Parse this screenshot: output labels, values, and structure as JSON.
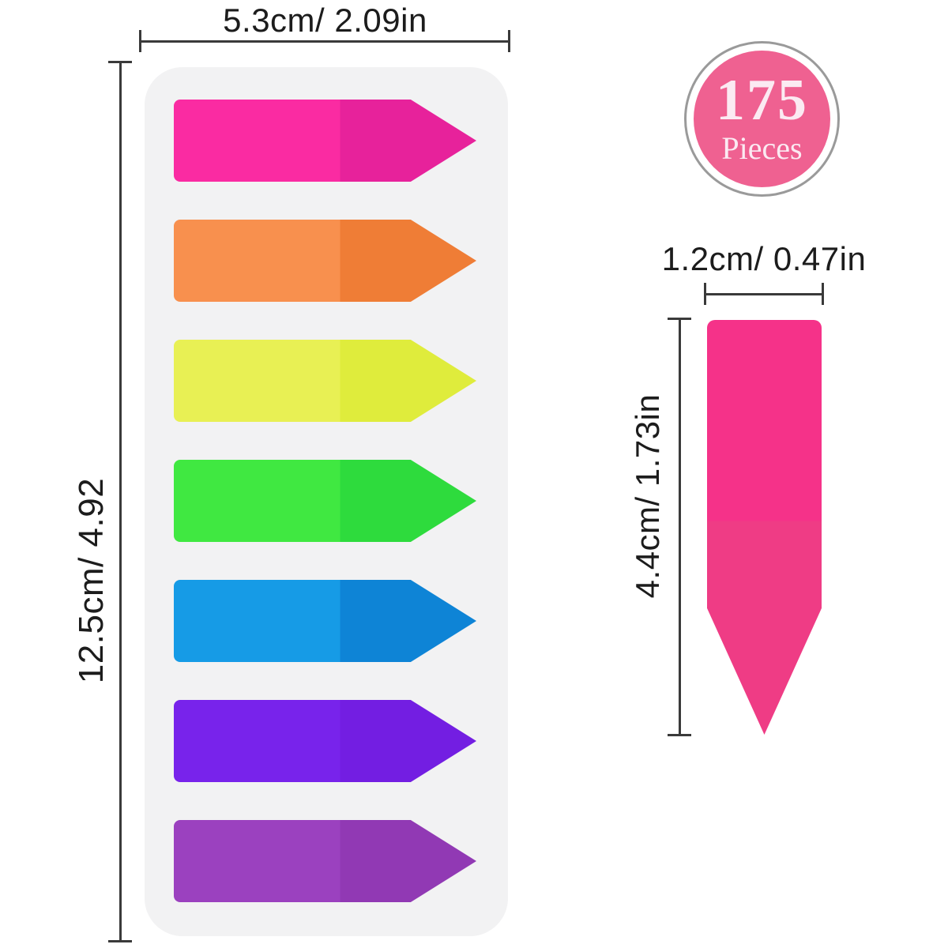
{
  "badge": {
    "count": "175",
    "unit": "Pieces",
    "fill": "#EF6191",
    "text_color": "#FBEAF2",
    "ring_color": "#9a9a9a"
  },
  "dimensions": {
    "line_color": "#3a3a3a",
    "card_width": {
      "label": "5.3cm/ 2.09in"
    },
    "card_height": {
      "label": "12.5cm/ 4.92"
    },
    "tab_width": {
      "label": "1.2cm/ 0.47in"
    },
    "tab_height": {
      "label": "4.4cm/ 1.73in"
    }
  },
  "card": {
    "fill": "#F2F2F3",
    "tabs": [
      {
        "name": "pink",
        "left_color": "#FA2BA2",
        "right_color": "#E7229B"
      },
      {
        "name": "orange",
        "left_color": "#F8904E",
        "right_color": "#EF7D36"
      },
      {
        "name": "yellow",
        "left_color": "#E8F054",
        "right_color": "#DFEC3C"
      },
      {
        "name": "green",
        "left_color": "#40E841",
        "right_color": "#2EDB3D"
      },
      {
        "name": "blue",
        "left_color": "#169BE6",
        "right_color": "#0E84D6"
      },
      {
        "name": "violet",
        "left_color": "#7823EB",
        "right_color": "#731EE2"
      },
      {
        "name": "purple",
        "left_color": "#9B41BF",
        "right_color": "#9139B4"
      }
    ],
    "tab_split_percent": 55
  },
  "single_tab": {
    "name": "pink-arrow-flag",
    "top_color": "#F53289",
    "bottom_color": "#EF3C85",
    "split_percent": 48.5
  }
}
